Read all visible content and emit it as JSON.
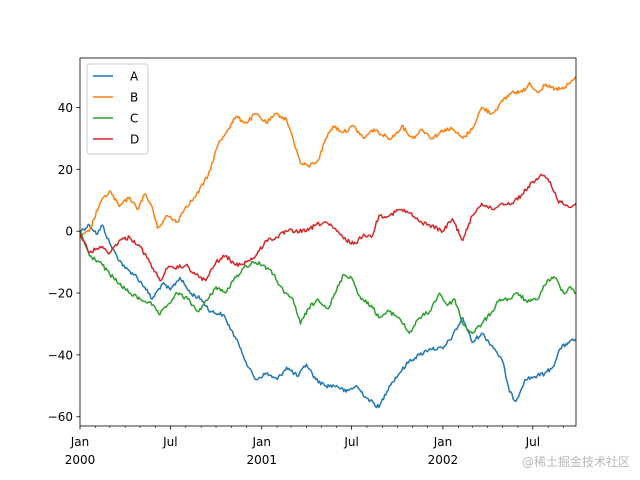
{
  "chart_data": {
    "type": "line",
    "title": "",
    "xlabel": "",
    "ylabel": "",
    "x_range": [
      "2000-01-01",
      "2002-09-26"
    ],
    "ylim": [
      -63,
      56
    ],
    "y_ticks": [
      -60,
      -40,
      -20,
      0,
      20,
      40
    ],
    "grid": false,
    "legend_placement": "top-left",
    "major_ticks": [
      {
        "date": "2000-01-01",
        "line1": "Jan",
        "line2": "2000"
      },
      {
        "date": "2000-07-01",
        "line1": "Jul",
        "line2": ""
      },
      {
        "date": "2001-01-01",
        "line1": "Jan",
        "line2": "2001"
      },
      {
        "date": "2001-07-01",
        "line1": "Jul",
        "line2": ""
      },
      {
        "date": "2002-01-01",
        "line1": "Jan",
        "line2": "2002"
      },
      {
        "date": "2002-07-01",
        "line1": "Jul",
        "line2": ""
      }
    ],
    "minor_ticks": [
      "2000-02-01",
      "2000-03-01",
      "2000-04-01",
      "2000-05-01",
      "2000-06-01",
      "2000-08-01",
      "2000-09-01",
      "2000-10-01",
      "2000-11-01",
      "2000-12-01",
      "2001-02-01",
      "2001-03-01",
      "2001-04-01",
      "2001-05-01",
      "2001-06-01",
      "2001-08-01",
      "2001-09-01",
      "2001-10-01",
      "2001-11-01",
      "2001-12-01",
      "2002-02-01",
      "2002-03-01",
      "2002-04-01",
      "2002-05-01",
      "2002-06-01",
      "2002-08-01",
      "2002-09-01"
    ],
    "series": [
      {
        "name": "A",
        "color": "#1f77b4",
        "points": [
          [
            "2000-01-01",
            0
          ],
          [
            "2000-01-20",
            2
          ],
          [
            "2000-02-05",
            -1
          ],
          [
            "2000-02-15",
            2
          ],
          [
            "2000-03-01",
            -4
          ],
          [
            "2000-03-15",
            -8
          ],
          [
            "2000-04-01",
            -12
          ],
          [
            "2000-04-20",
            -14
          ],
          [
            "2000-05-10",
            -18
          ],
          [
            "2000-05-25",
            -22
          ],
          [
            "2000-06-15",
            -17
          ],
          [
            "2000-07-01",
            -19
          ],
          [
            "2000-07-20",
            -15
          ],
          [
            "2000-08-10",
            -20
          ],
          [
            "2000-09-01",
            -22
          ],
          [
            "2000-09-20",
            -26
          ],
          [
            "2000-10-15",
            -27
          ],
          [
            "2000-11-01",
            -32
          ],
          [
            "2000-11-20",
            -38
          ],
          [
            "2000-12-05",
            -44
          ],
          [
            "2000-12-20",
            -48
          ],
          [
            "2001-01-10",
            -46
          ],
          [
            "2001-02-01",
            -48
          ],
          [
            "2001-02-20",
            -44
          ],
          [
            "2001-03-15",
            -47
          ],
          [
            "2001-04-01",
            -43
          ],
          [
            "2001-04-20",
            -48
          ],
          [
            "2001-05-10",
            -50
          ],
          [
            "2001-06-01",
            -50
          ],
          [
            "2001-06-20",
            -52
          ],
          [
            "2001-07-10",
            -50
          ],
          [
            "2001-08-01",
            -54
          ],
          [
            "2001-08-25",
            -57
          ],
          [
            "2001-09-15",
            -50
          ],
          [
            "2001-10-05",
            -46
          ],
          [
            "2001-10-25",
            -42
          ],
          [
            "2001-11-15",
            -40
          ],
          [
            "2001-12-05",
            -38
          ],
          [
            "2002-01-01",
            -38
          ],
          [
            "2002-01-20",
            -34
          ],
          [
            "2002-02-10",
            -28
          ],
          [
            "2002-03-01",
            -36
          ],
          [
            "2002-03-20",
            -33
          ],
          [
            "2002-04-15",
            -38
          ],
          [
            "2002-05-01",
            -42
          ],
          [
            "2002-05-15",
            -52
          ],
          [
            "2002-05-28",
            -55
          ],
          [
            "2002-06-15",
            -48
          ],
          [
            "2002-07-05",
            -47
          ],
          [
            "2002-07-25",
            -46
          ],
          [
            "2002-08-10",
            -44
          ],
          [
            "2002-08-25",
            -38
          ],
          [
            "2002-09-10",
            -36
          ],
          [
            "2002-09-26",
            -35
          ]
        ]
      },
      {
        "name": "B",
        "color": "#ff7f0e",
        "points": [
          [
            "2000-01-01",
            -2
          ],
          [
            "2000-01-20",
            0
          ],
          [
            "2000-02-10",
            9
          ],
          [
            "2000-03-01",
            13
          ],
          [
            "2000-03-20",
            8
          ],
          [
            "2000-04-10",
            11
          ],
          [
            "2000-04-25",
            7
          ],
          [
            "2000-05-10",
            12
          ],
          [
            "2000-05-25",
            8
          ],
          [
            "2000-06-05",
            1
          ],
          [
            "2000-06-25",
            5
          ],
          [
            "2000-07-15",
            3
          ],
          [
            "2000-08-01",
            8
          ],
          [
            "2000-08-20",
            11
          ],
          [
            "2000-09-15",
            18
          ],
          [
            "2000-10-05",
            28
          ],
          [
            "2000-10-25",
            33
          ],
          [
            "2000-11-10",
            37
          ],
          [
            "2000-12-01",
            35
          ],
          [
            "2000-12-20",
            38
          ],
          [
            "2001-01-10",
            35
          ],
          [
            "2001-02-01",
            38
          ],
          [
            "2001-02-20",
            36
          ],
          [
            "2001-03-05",
            30
          ],
          [
            "2001-03-20",
            22
          ],
          [
            "2001-04-05",
            21
          ],
          [
            "2001-04-25",
            23
          ],
          [
            "2001-05-10",
            30
          ],
          [
            "2001-05-25",
            34
          ],
          [
            "2001-06-15",
            32
          ],
          [
            "2001-07-05",
            34
          ],
          [
            "2001-07-25",
            30
          ],
          [
            "2001-08-15",
            33
          ],
          [
            "2001-09-01",
            31
          ],
          [
            "2001-09-20",
            30
          ],
          [
            "2001-10-10",
            34
          ],
          [
            "2001-11-01",
            30
          ],
          [
            "2001-11-20",
            33
          ],
          [
            "2001-12-10",
            30
          ],
          [
            "2002-01-05",
            33
          ],
          [
            "2002-01-20",
            33
          ],
          [
            "2002-02-10",
            30
          ],
          [
            "2002-03-01",
            33
          ],
          [
            "2002-03-20",
            40
          ],
          [
            "2002-04-10",
            38
          ],
          [
            "2002-05-01",
            42
          ],
          [
            "2002-05-20",
            45
          ],
          [
            "2002-06-10",
            45
          ],
          [
            "2002-06-25",
            48
          ],
          [
            "2002-07-10",
            45
          ],
          [
            "2002-07-25",
            47
          ],
          [
            "2002-08-15",
            46
          ],
          [
            "2002-09-01",
            46
          ],
          [
            "2002-09-15",
            48
          ],
          [
            "2002-09-26",
            50
          ]
        ]
      },
      {
        "name": "C",
        "color": "#2ca02c",
        "points": [
          [
            "2000-01-01",
            0
          ],
          [
            "2000-01-20",
            -8
          ],
          [
            "2000-02-10",
            -10
          ],
          [
            "2000-03-01",
            -14
          ],
          [
            "2000-03-20",
            -17
          ],
          [
            "2000-04-10",
            -20
          ],
          [
            "2000-05-01",
            -22
          ],
          [
            "2000-05-20",
            -23
          ],
          [
            "2000-06-10",
            -27
          ],
          [
            "2000-06-25",
            -24
          ],
          [
            "2000-07-15",
            -20
          ],
          [
            "2000-08-05",
            -22
          ],
          [
            "2000-08-25",
            -26
          ],
          [
            "2000-09-15",
            -22
          ],
          [
            "2000-10-01",
            -18
          ],
          [
            "2000-10-20",
            -20
          ],
          [
            "2000-11-05",
            -16
          ],
          [
            "2000-11-25",
            -12
          ],
          [
            "2000-12-15",
            -10
          ],
          [
            "2001-01-05",
            -11
          ],
          [
            "2001-01-25",
            -14
          ],
          [
            "2001-02-15",
            -20
          ],
          [
            "2001-03-05",
            -22
          ],
          [
            "2001-03-20",
            -30
          ],
          [
            "2001-04-05",
            -25
          ],
          [
            "2001-04-25",
            -22
          ],
          [
            "2001-05-15",
            -25
          ],
          [
            "2001-06-01",
            -19
          ],
          [
            "2001-06-15",
            -14
          ],
          [
            "2001-07-01",
            -15
          ],
          [
            "2001-07-20",
            -22
          ],
          [
            "2001-08-10",
            -24
          ],
          [
            "2001-08-25",
            -28
          ],
          [
            "2001-09-15",
            -26
          ],
          [
            "2001-10-05",
            -28
          ],
          [
            "2001-10-25",
            -33
          ],
          [
            "2001-11-15",
            -28
          ],
          [
            "2001-12-05",
            -26
          ],
          [
            "2001-12-25",
            -20
          ],
          [
            "2002-01-10",
            -24
          ],
          [
            "2002-01-25",
            -22
          ],
          [
            "2002-02-10",
            -30
          ],
          [
            "2002-03-01",
            -33
          ],
          [
            "2002-03-20",
            -30
          ],
          [
            "2002-04-10",
            -26
          ],
          [
            "2002-04-25",
            -22
          ],
          [
            "2002-05-15",
            -22
          ],
          [
            "2002-06-01",
            -20
          ],
          [
            "2002-06-20",
            -23
          ],
          [
            "2002-07-10",
            -22
          ],
          [
            "2002-07-30",
            -16
          ],
          [
            "2002-08-15",
            -15
          ],
          [
            "2002-09-01",
            -20
          ],
          [
            "2002-09-15",
            -18
          ],
          [
            "2002-09-26",
            -20
          ]
        ]
      },
      {
        "name": "D",
        "color": "#d62728",
        "points": [
          [
            "2000-01-01",
            -1
          ],
          [
            "2000-01-20",
            -7
          ],
          [
            "2000-02-10",
            -5
          ],
          [
            "2000-03-01",
            -7
          ],
          [
            "2000-03-20",
            -3
          ],
          [
            "2000-04-10",
            -2
          ],
          [
            "2000-05-01",
            -5
          ],
          [
            "2000-05-20",
            -10
          ],
          [
            "2000-06-10",
            -16
          ],
          [
            "2000-06-25",
            -12
          ],
          [
            "2000-07-10",
            -12
          ],
          [
            "2000-08-01",
            -11
          ],
          [
            "2000-08-20",
            -14
          ],
          [
            "2000-09-10",
            -16
          ],
          [
            "2000-10-01",
            -10
          ],
          [
            "2000-10-20",
            -8
          ],
          [
            "2000-11-10",
            -11
          ],
          [
            "2000-12-01",
            -10
          ],
          [
            "2000-12-20",
            -8
          ],
          [
            "2001-01-10",
            -3
          ],
          [
            "2001-02-01",
            -2
          ],
          [
            "2001-02-20",
            0
          ],
          [
            "2001-03-10",
            0
          ],
          [
            "2001-04-01",
            0
          ],
          [
            "2001-04-20",
            2
          ],
          [
            "2001-05-10",
            3
          ],
          [
            "2001-06-01",
            0
          ],
          [
            "2001-06-20",
            -3
          ],
          [
            "2001-07-10",
            -4
          ],
          [
            "2001-07-25",
            -1
          ],
          [
            "2001-08-10",
            -2
          ],
          [
            "2001-08-25",
            5
          ],
          [
            "2001-09-15",
            5
          ],
          [
            "2001-10-05",
            7
          ],
          [
            "2001-10-25",
            6
          ],
          [
            "2001-11-15",
            3
          ],
          [
            "2001-12-05",
            2
          ],
          [
            "2002-01-01",
            0
          ],
          [
            "2002-01-20",
            4
          ],
          [
            "2002-02-10",
            -3
          ],
          [
            "2002-03-01",
            5
          ],
          [
            "2002-03-20",
            9
          ],
          [
            "2002-04-10",
            7
          ],
          [
            "2002-05-01",
            9
          ],
          [
            "2002-05-20",
            9
          ],
          [
            "2002-06-10",
            12
          ],
          [
            "2002-07-01",
            16
          ],
          [
            "2002-07-20",
            18
          ],
          [
            "2002-08-05",
            16
          ],
          [
            "2002-08-20",
            10
          ],
          [
            "2002-09-10",
            8
          ],
          [
            "2002-09-26",
            9
          ]
        ]
      }
    ]
  },
  "watermark": "@稀土掘金技术社区"
}
